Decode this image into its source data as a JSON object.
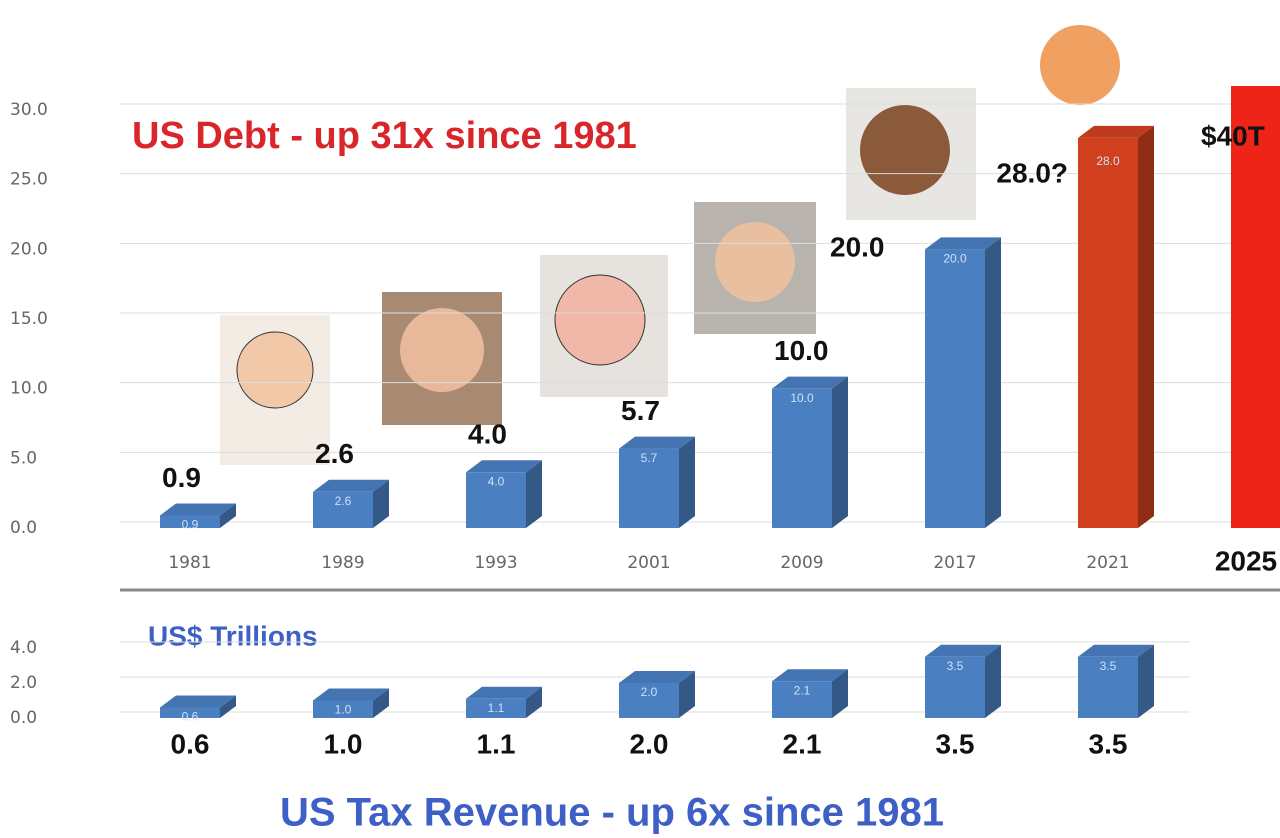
{
  "chart_data": [
    {
      "type": "bar3d",
      "title": "US Debt  -  up 31x since 1981",
      "categories": [
        "1981",
        "1989",
        "1993",
        "2001",
        "2009",
        "2017",
        "2021",
        "2025"
      ],
      "values": [
        0.9,
        2.6,
        4.0,
        5.7,
        10.0,
        20.0,
        28.0,
        40
      ],
      "value_labels": [
        "0.9",
        "2.6",
        "4.0",
        "5.7",
        "10.0",
        "20.0",
        "28.0?",
        "$40T"
      ],
      "inner_labels": [
        "0.9",
        "2.6",
        "4.0",
        "5.7",
        "10.0",
        "20.0",
        "28.0",
        null
      ],
      "colors": [
        "#4a7fc1",
        "#4a7fc1",
        "#4a7fc1",
        "#4a7fc1",
        "#4a7fc1",
        "#4a7fc1",
        "#d0401e",
        "#ee2418"
      ],
      "ylim": [
        0,
        30
      ],
      "yticks": [
        {
          "value": 0,
          "label": "0.0"
        },
        {
          "value": 5,
          "label": "5.0"
        },
        {
          "value": 10,
          "label": "10.0"
        },
        {
          "value": 15,
          "label": "15.0"
        },
        {
          "value": 20,
          "label": "20.0"
        },
        {
          "value": 25,
          "label": "25.0"
        },
        {
          "value": 30,
          "label": "30.0"
        }
      ],
      "grid": true
    },
    {
      "type": "bar3d",
      "title": "US Tax Revenue  - up 6x since 1981",
      "subtitle": "US$ Trillions",
      "values": [
        0.6,
        1.0,
        1.1,
        2.0,
        2.1,
        3.5,
        3.5
      ],
      "value_labels": [
        "0.6",
        "1.0",
        "1.1",
        "2.0",
        "2.1",
        "3.5",
        "3.5"
      ],
      "inner_labels": [
        "0.6",
        "1.0",
        "1.1",
        "2.0",
        "2.1",
        "3.5",
        "3.5"
      ],
      "color": "#4a7fc1",
      "ylim": [
        0,
        4
      ],
      "yticks": [
        {
          "value": 0,
          "label": "0.0"
        },
        {
          "value": 2,
          "label": "2.0"
        },
        {
          "value": 4,
          "label": "4.0"
        }
      ],
      "grid": true
    }
  ]
}
